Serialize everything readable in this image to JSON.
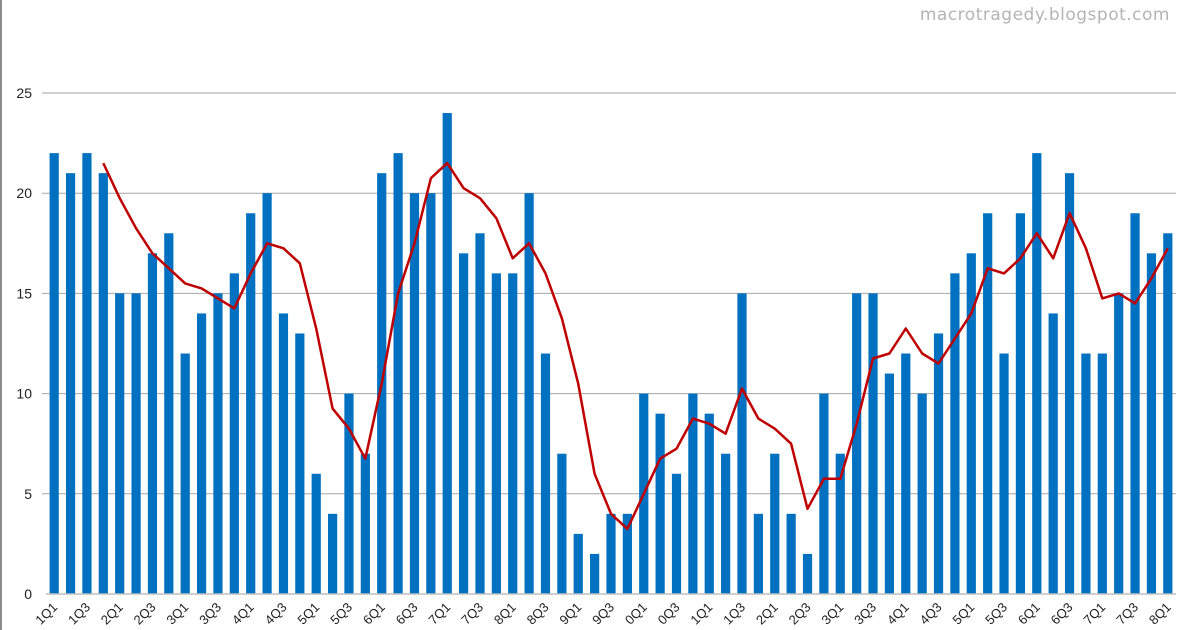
{
  "watermark": "macrotragedy.blogspot.com",
  "colors": {
    "bars": "#0070c0",
    "line": "#c00000",
    "grid": "#a6a6a6"
  },
  "chart_data": {
    "type": "bar",
    "title": "",
    "xlabel": "",
    "ylabel": "",
    "ylim": [
      0,
      25
    ],
    "yticks": [
      0,
      5,
      10,
      15,
      20,
      25
    ],
    "grid": true,
    "legend": "none",
    "xtick_labels": [
      "1Q1",
      "1Q3",
      "2Q1",
      "2Q3",
      "3Q1",
      "3Q3",
      "4Q1",
      "4Q3",
      "5Q1",
      "5Q3",
      "6Q1",
      "6Q3",
      "7Q1",
      "7Q3",
      "8Q1",
      "8Q3",
      "9Q1",
      "9Q3",
      "0Q1",
      "0Q3",
      "1Q1",
      "1Q3",
      "2Q1",
      "2Q3",
      "3Q1",
      "3Q3",
      "4Q1",
      "4Q3",
      "5Q1",
      "5Q3",
      "6Q1",
      "6Q3",
      "7Q1",
      "7Q3",
      "8Q1"
    ],
    "series": [
      {
        "type": "bar",
        "values": [
          22,
          21,
          22,
          21,
          15,
          15,
          17,
          18,
          12,
          14,
          15,
          16,
          19,
          20,
          14,
          13,
          6,
          4,
          10,
          7,
          21,
          22,
          20,
          20,
          24,
          17,
          18,
          16,
          16,
          20,
          12,
          7,
          3,
          2,
          4,
          4,
          10,
          9,
          6,
          10,
          9,
          7,
          15,
          4,
          7,
          4,
          2,
          10,
          7,
          15,
          15,
          11,
          12,
          10,
          13,
          16,
          17,
          19,
          12,
          19,
          22,
          14,
          21,
          12,
          12,
          15,
          19,
          17,
          18
        ]
      },
      {
        "type": "line",
        "values": [
          null,
          null,
          null,
          21.5,
          19.75,
          18.25,
          17,
          16.25,
          15.5,
          15.25,
          14.75,
          14.25,
          16,
          17.5,
          17.25,
          16.5,
          13.25,
          9.25,
          8.25,
          6.75,
          10.5,
          15,
          17.5,
          20.75,
          21.5,
          20.25,
          19.75,
          18.75,
          16.75,
          17.5,
          16,
          13.75,
          10.5,
          6,
          4,
          3.25,
          5,
          6.75,
          7.25,
          8.75,
          8.5,
          8,
          10.25,
          8.75,
          8.25,
          7.5,
          4.25,
          5.75,
          5.75,
          8.5,
          11.75,
          12,
          13.25,
          12,
          11.5,
          12.75,
          14,
          16.25,
          16,
          16.75,
          18,
          16.75,
          19,
          17.25,
          14.75,
          15,
          14.5,
          15.75,
          17.25
        ]
      }
    ]
  }
}
